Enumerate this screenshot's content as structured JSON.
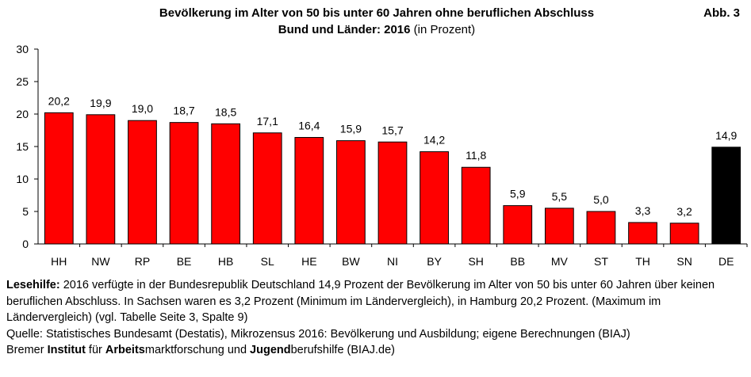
{
  "header": {
    "title_line1": "Bevölkerung im Alter von 50 bis unter 60 Jahren ohne beruflichen Abschluss",
    "title_line2_bold": "Bund und Länder: 2016",
    "title_line2_rest": " (in Prozent)",
    "figure_label": "Abb. 3"
  },
  "chart_data": {
    "type": "bar",
    "title": "Bevölkerung im Alter von 50 bis unter 60 Jahren ohne beruflichen Abschluss – Bund und Länder: 2016 (in Prozent)",
    "xlabel": "",
    "ylabel": "",
    "ylim": [
      0,
      30
    ],
    "yticks": [
      0,
      5,
      10,
      15,
      20,
      25,
      30
    ],
    "grid": false,
    "categories": [
      "HH",
      "NW",
      "RP",
      "BE",
      "HB",
      "SL",
      "HE",
      "BW",
      "NI",
      "BY",
      "SH",
      "BB",
      "MV",
      "ST",
      "TH",
      "SN",
      "DE"
    ],
    "values": [
      20.2,
      19.9,
      19.0,
      18.7,
      18.5,
      17.1,
      16.4,
      15.9,
      15.7,
      14.2,
      11.8,
      5.9,
      5.5,
      5.0,
      3.3,
      3.2,
      14.9
    ],
    "value_labels": [
      "20,2",
      "19,9",
      "19,0",
      "18,7",
      "18,5",
      "17,1",
      "16,4",
      "15,9",
      "15,7",
      "14,2",
      "11,8",
      "5,9",
      "5,5",
      "5,0",
      "3,3",
      "3,2",
      "14,9"
    ],
    "bar_colors": [
      "#ff0000",
      "#ff0000",
      "#ff0000",
      "#ff0000",
      "#ff0000",
      "#ff0000",
      "#ff0000",
      "#ff0000",
      "#ff0000",
      "#ff0000",
      "#ff0000",
      "#ff0000",
      "#ff0000",
      "#ff0000",
      "#ff0000",
      "#ff0000",
      "#000000"
    ],
    "bar_outline_color": "#000000"
  },
  "footer": {
    "lesehilfe_label": "Lesehilfe:",
    "lesehilfe_text": " 2016 verfügte in der Bundesrepublik Deutschland 14,9 Prozent der Bevölkerung im Alter von 50 bis unter 60 Jahren über keinen beruflichen Abschluss. In Sachsen waren es 3,2 Prozent (Minimum im Ländervergleich), in Hamburg 20,2 Prozent.  (Maximum im Ländervergleich) (vgl. Tabelle Seite 3, Spalte 9)",
    "quelle": "Quelle: Statistisches Bundesamt (Destatis), Mikrozensus 2016: Bevölkerung und Ausbildung; eigene Berechnungen (BIAJ)",
    "biaj_1": "Bremer ",
    "biaj_2": "Institut",
    "biaj_3": " für ",
    "biaj_4": "Arbeits",
    "biaj_5": "marktforschung und ",
    "biaj_6": "Jugend",
    "biaj_7": "berufshilfe (BIAJ.de)"
  }
}
